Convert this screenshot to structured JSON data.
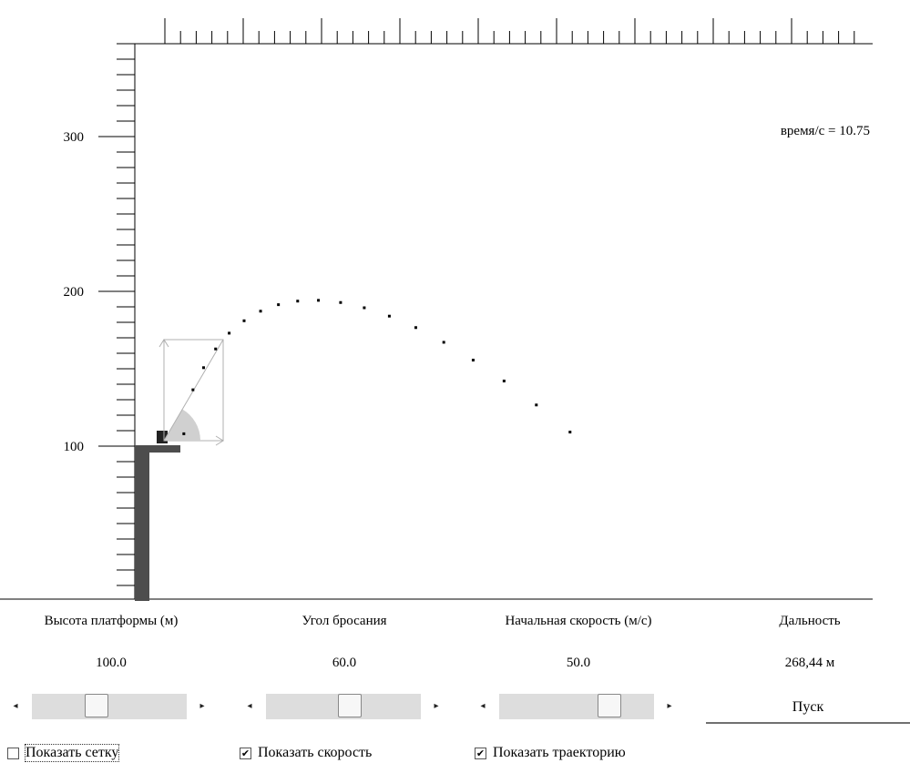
{
  "plot": {
    "y_ticks": [
      "100",
      "200",
      "300"
    ],
    "time_readout": "время/с = 10.75",
    "trajectory_points": [
      [
        15.7,
        8
      ],
      [
        22.9,
        36.4
      ],
      [
        31.3,
        50.7
      ],
      [
        40.8,
        62.8
      ],
      [
        51.5,
        73
      ],
      [
        63.3,
        81
      ],
      [
        76.3,
        87.2
      ],
      [
        90.4,
        91.4
      ],
      [
        105.6,
        93.7
      ],
      [
        122,
        94.2
      ],
      [
        139.5,
        92.8
      ],
      [
        158.2,
        89.4
      ],
      [
        178,
        84
      ],
      [
        198.9,
        76.6
      ],
      [
        221,
        67.1
      ],
      [
        244.2,
        55.6
      ],
      [
        268.6,
        42.1
      ],
      [
        294.1,
        26.6
      ],
      [
        320.7,
        9.1
      ]
    ],
    "platform_height": 100.0
  },
  "controls": {
    "height": {
      "label": "Высота платформы (м)",
      "value": "100.0",
      "position": 0.4
    },
    "angle": {
      "label": "Угол бросания",
      "value": "60.0",
      "position": 0.55
    },
    "speed": {
      "label": "Начальная скорость (м/с)",
      "value": "50.0",
      "position": 0.75
    },
    "range": {
      "label": "Дальность",
      "value": "268,44 м"
    },
    "start_button": "Пуск"
  },
  "checkboxes": [
    {
      "label": "Показать сетку",
      "checked": false,
      "mark": ""
    },
    {
      "label": "Показать скорость",
      "checked": true,
      "mark": "✔"
    },
    {
      "label": "Показать траекторию",
      "checked": true,
      "mark": "✔"
    }
  ]
}
